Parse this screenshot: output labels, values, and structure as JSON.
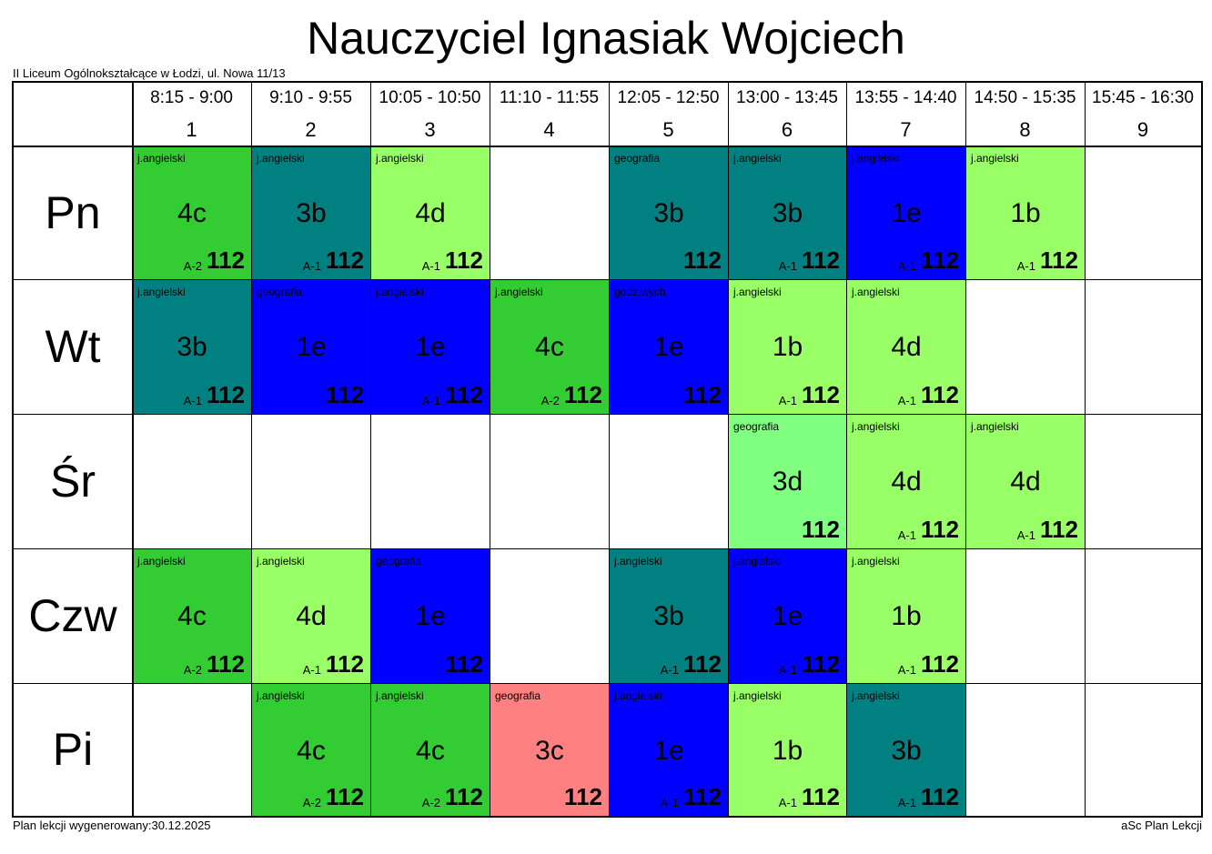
{
  "title": "Nauczyciel Ignasiak Wojciech",
  "school": "II Liceum Ogólnokształcące w Łodzi, ul. Nowa 11/13",
  "footer": {
    "generated": "Plan lekcji wygenerowany:30.12.2025",
    "brand": "aSc Plan Lekcji"
  },
  "colors": {
    "dark_green": "#33cc33",
    "teal": "#008080",
    "light_green": "#99ff66",
    "blue": "#0000ff",
    "mint": "#80ff80",
    "pink": "#ff8080"
  },
  "periods": [
    {
      "time": "8:15 - 9:00",
      "num": "1"
    },
    {
      "time": "9:10 - 9:55",
      "num": "2"
    },
    {
      "time": "10:05 - 10:50",
      "num": "3"
    },
    {
      "time": "11:10 - 11:55",
      "num": "4"
    },
    {
      "time": "12:05 - 12:50",
      "num": "5"
    },
    {
      "time": "13:00 - 13:45",
      "num": "6"
    },
    {
      "time": "13:55 - 14:40",
      "num": "7"
    },
    {
      "time": "14:50 - 15:35",
      "num": "8"
    },
    {
      "time": "15:45 - 16:30",
      "num": "9"
    }
  ],
  "days": [
    {
      "name": "Pn",
      "lessons": [
        {
          "subject": "j.angielski",
          "class": "4c",
          "group": "A-2",
          "room": "112",
          "color": "#33cc33",
          "text": "#000000"
        },
        {
          "subject": "j.angielski",
          "class": "3b",
          "group": "A-1",
          "room": "112",
          "color": "#008080",
          "text": "#000000"
        },
        {
          "subject": "j.angielski",
          "class": "4d",
          "group": "A-1",
          "room": "112",
          "color": "#99ff66",
          "text": "#000000"
        },
        null,
        {
          "subject": "geografia",
          "class": "3b",
          "group": "",
          "room": "112",
          "color": "#008080",
          "text": "#000000"
        },
        {
          "subject": "j.angielski",
          "class": "3b",
          "group": "A-1",
          "room": "112",
          "color": "#008080",
          "text": "#000000"
        },
        {
          "subject": "j.angielski",
          "class": "1e",
          "group": "A-1",
          "room": "112",
          "color": "#0000ff",
          "text": "#000000"
        },
        {
          "subject": "j.angielski",
          "class": "1b",
          "group": "A-1",
          "room": "112",
          "color": "#99ff66",
          "text": "#000000"
        },
        null
      ]
    },
    {
      "name": "Wt",
      "lessons": [
        {
          "subject": "j.angielski",
          "class": "3b",
          "group": "A-1",
          "room": "112",
          "color": "#008080",
          "text": "#000000"
        },
        {
          "subject": "geografia",
          "class": "1e",
          "group": "",
          "room": "112",
          "color": "#0000ff",
          "text": "#000000"
        },
        {
          "subject": "j.angielski",
          "class": "1e",
          "group": "A-1",
          "room": "112",
          "color": "#0000ff",
          "text": "#000000"
        },
        {
          "subject": "j.angielski",
          "class": "4c",
          "group": "A-2",
          "room": "112",
          "color": "#33cc33",
          "text": "#000000"
        },
        {
          "subject": "godz.wych",
          "class": "1e",
          "group": "",
          "room": "112",
          "color": "#0000ff",
          "text": "#000000"
        },
        {
          "subject": "j.angielski",
          "class": "1b",
          "group": "A-1",
          "room": "112",
          "color": "#99ff66",
          "text": "#000000"
        },
        {
          "subject": "j.angielski",
          "class": "4d",
          "group": "A-1",
          "room": "112",
          "color": "#99ff66",
          "text": "#000000"
        },
        null,
        null
      ]
    },
    {
      "name": "Śr",
      "lessons": [
        null,
        null,
        null,
        null,
        null,
        {
          "subject": "geografia",
          "class": "3d",
          "group": "",
          "room": "112",
          "color": "#80ff80",
          "text": "#000000"
        },
        {
          "subject": "j.angielski",
          "class": "4d",
          "group": "A-1",
          "room": "112",
          "color": "#99ff66",
          "text": "#000000"
        },
        {
          "subject": "j.angielski",
          "class": "4d",
          "group": "A-1",
          "room": "112",
          "color": "#99ff66",
          "text": "#000000"
        },
        null
      ]
    },
    {
      "name": "Czw",
      "lessons": [
        {
          "subject": "j.angielski",
          "class": "4c",
          "group": "A-2",
          "room": "112",
          "color": "#33cc33",
          "text": "#000000"
        },
        {
          "subject": "j.angielski",
          "class": "4d",
          "group": "A-1",
          "room": "112",
          "color": "#99ff66",
          "text": "#000000"
        },
        {
          "subject": "geografia",
          "class": "1e",
          "group": "",
          "room": "112",
          "color": "#0000ff",
          "text": "#000000"
        },
        null,
        {
          "subject": "j.angielski",
          "class": "3b",
          "group": "A-1",
          "room": "112",
          "color": "#008080",
          "text": "#000000"
        },
        {
          "subject": "j.angielski",
          "class": "1e",
          "group": "A-1",
          "room": "112",
          "color": "#0000ff",
          "text": "#000000"
        },
        {
          "subject": "j.angielski",
          "class": "1b",
          "group": "A-1",
          "room": "112",
          "color": "#99ff66",
          "text": "#000000"
        },
        null,
        null
      ]
    },
    {
      "name": "Pi",
      "lessons": [
        null,
        {
          "subject": "j.angielski",
          "class": "4c",
          "group": "A-2",
          "room": "112",
          "color": "#33cc33",
          "text": "#000000"
        },
        {
          "subject": "j.angielski",
          "class": "4c",
          "group": "A-2",
          "room": "112",
          "color": "#33cc33",
          "text": "#000000"
        },
        {
          "subject": "geografia",
          "class": "3c",
          "group": "",
          "room": "112",
          "color": "#ff8080",
          "text": "#000000"
        },
        {
          "subject": "j.angielski",
          "class": "1e",
          "group": "A-1",
          "room": "112",
          "color": "#0000ff",
          "text": "#000000"
        },
        {
          "subject": "j.angielski",
          "class": "1b",
          "group": "A-1",
          "room": "112",
          "color": "#99ff66",
          "text": "#000000"
        },
        {
          "subject": "j.angielski",
          "class": "3b",
          "group": "A-1",
          "room": "112",
          "color": "#008080",
          "text": "#000000"
        },
        null,
        null
      ]
    }
  ]
}
